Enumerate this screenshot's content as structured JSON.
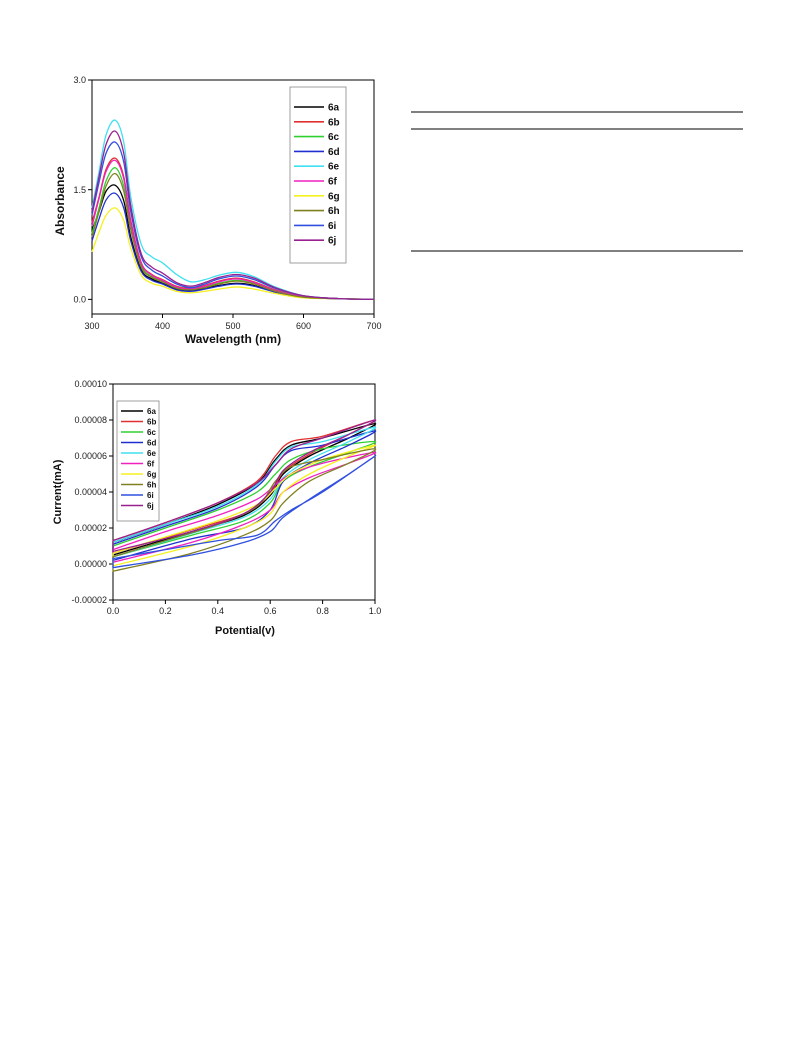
{
  "chart_data": [
    {
      "type": "line",
      "title": "",
      "xlabel": "Wavelength (nm)",
      "ylabel": "Absorbance",
      "xlim": [
        300,
        700
      ],
      "ylim": [
        -0.2,
        3.0
      ],
      "xticks": [
        300,
        400,
        500,
        600,
        700
      ],
      "yticks": [
        0.0,
        1.5,
        3.0
      ],
      "xtick_labels": [
        "300",
        "400",
        "500",
        "600",
        "700"
      ],
      "ytick_labels": [
        "0.0",
        "1.5",
        "3.0"
      ],
      "grid": false,
      "legend_position": "top-right",
      "series": [
        {
          "name": "6a",
          "color": "#000000",
          "x": [
            300,
            310,
            320,
            333,
            345,
            355,
            370,
            385,
            400,
            420,
            440,
            460,
            480,
            505,
            530,
            560,
            600,
            650,
            700
          ],
          "y": [
            0.95,
            1.2,
            1.48,
            1.56,
            1.35,
            0.85,
            0.4,
            0.28,
            0.22,
            0.14,
            0.12,
            0.15,
            0.19,
            0.22,
            0.19,
            0.1,
            0.03,
            0.01,
            0.0
          ]
        },
        {
          "name": "6b",
          "color": "#e03030",
          "x": [
            300,
            310,
            320,
            333,
            345,
            355,
            370,
            385,
            400,
            420,
            440,
            460,
            480,
            505,
            530,
            560,
            600,
            650,
            700
          ],
          "y": [
            1.05,
            1.4,
            1.78,
            1.93,
            1.68,
            1.08,
            0.5,
            0.34,
            0.27,
            0.18,
            0.15,
            0.19,
            0.25,
            0.29,
            0.24,
            0.13,
            0.04,
            0.01,
            0.0
          ]
        },
        {
          "name": "6c",
          "color": "#30d030",
          "x": [
            300,
            310,
            320,
            333,
            345,
            355,
            370,
            385,
            400,
            420,
            440,
            460,
            480,
            505,
            530,
            560,
            600,
            650,
            700
          ],
          "y": [
            0.9,
            1.25,
            1.62,
            1.8,
            1.55,
            1.0,
            0.46,
            0.31,
            0.25,
            0.16,
            0.13,
            0.17,
            0.22,
            0.26,
            0.22,
            0.12,
            0.04,
            0.01,
            0.0
          ]
        },
        {
          "name": "6d",
          "color": "#2030d0",
          "x": [
            300,
            310,
            320,
            333,
            345,
            355,
            370,
            385,
            400,
            420,
            440,
            460,
            480,
            505,
            530,
            560,
            600,
            650,
            700
          ],
          "y": [
            0.8,
            1.1,
            1.36,
            1.45,
            1.25,
            0.8,
            0.38,
            0.26,
            0.21,
            0.13,
            0.11,
            0.14,
            0.18,
            0.21,
            0.18,
            0.1,
            0.03,
            0.01,
            0.0
          ]
        },
        {
          "name": "6e",
          "color": "#40e0f0",
          "x": [
            300,
            310,
            320,
            333,
            345,
            355,
            370,
            385,
            400,
            420,
            440,
            460,
            480,
            505,
            530,
            560,
            600,
            650,
            700
          ],
          "y": [
            1.25,
            1.75,
            2.25,
            2.45,
            2.15,
            1.4,
            0.75,
            0.58,
            0.5,
            0.34,
            0.24,
            0.27,
            0.33,
            0.37,
            0.31,
            0.17,
            0.05,
            0.01,
            0.0
          ]
        },
        {
          "name": "6f",
          "color": "#f020c0",
          "x": [
            300,
            310,
            320,
            333,
            345,
            355,
            370,
            385,
            400,
            420,
            440,
            460,
            480,
            505,
            530,
            560,
            600,
            650,
            700
          ],
          "y": [
            1.0,
            1.38,
            1.75,
            1.9,
            1.65,
            1.05,
            0.49,
            0.33,
            0.26,
            0.17,
            0.14,
            0.18,
            0.24,
            0.28,
            0.23,
            0.12,
            0.04,
            0.01,
            0.0
          ]
        },
        {
          "name": "6g",
          "color": "#f5f020",
          "x": [
            300,
            310,
            320,
            333,
            345,
            355,
            370,
            385,
            400,
            420,
            440,
            460,
            480,
            505,
            530,
            560,
            600,
            650,
            700
          ],
          "y": [
            0.65,
            0.92,
            1.15,
            1.25,
            1.08,
            0.7,
            0.33,
            0.22,
            0.18,
            0.11,
            0.09,
            0.11,
            0.14,
            0.17,
            0.14,
            0.08,
            0.02,
            0.01,
            0.0
          ]
        },
        {
          "name": "6h",
          "color": "#808020",
          "x": [
            300,
            310,
            320,
            333,
            345,
            355,
            370,
            385,
            400,
            420,
            440,
            460,
            480,
            505,
            530,
            560,
            600,
            650,
            700
          ],
          "y": [
            0.85,
            1.2,
            1.55,
            1.72,
            1.48,
            0.95,
            0.44,
            0.3,
            0.24,
            0.15,
            0.13,
            0.16,
            0.21,
            0.25,
            0.21,
            0.11,
            0.03,
            0.01,
            0.0
          ]
        },
        {
          "name": "6i",
          "color": "#3050e0",
          "x": [
            300,
            310,
            320,
            333,
            345,
            355,
            370,
            385,
            400,
            420,
            440,
            460,
            480,
            505,
            530,
            560,
            600,
            650,
            700
          ],
          "y": [
            1.15,
            1.6,
            2.0,
            2.15,
            1.88,
            1.2,
            0.58,
            0.4,
            0.32,
            0.21,
            0.16,
            0.21,
            0.28,
            0.32,
            0.27,
            0.15,
            0.05,
            0.01,
            0.0
          ]
        },
        {
          "name": "6j",
          "color": "#9a2090",
          "x": [
            300,
            310,
            320,
            333,
            345,
            355,
            370,
            385,
            400,
            420,
            440,
            460,
            480,
            505,
            530,
            560,
            600,
            650,
            700
          ],
          "y": [
            1.2,
            1.68,
            2.12,
            2.3,
            2.0,
            1.28,
            0.62,
            0.44,
            0.36,
            0.23,
            0.18,
            0.23,
            0.3,
            0.34,
            0.29,
            0.16,
            0.05,
            0.01,
            0.0
          ]
        }
      ]
    },
    {
      "type": "line",
      "title": "",
      "xlabel": "Potential(v)",
      "ylabel": "Current(mA)",
      "xlim": [
        0.0,
        1.0
      ],
      "ylim": [
        -2e-05,
        0.0001
      ],
      "xticks": [
        0.0,
        0.2,
        0.4,
        0.6,
        0.8,
        1.0
      ],
      "yticks": [
        -2e-05,
        0.0,
        2e-05,
        4e-05,
        6e-05,
        8e-05,
        0.0001
      ],
      "xtick_labels": [
        "0.0",
        "0.2",
        "0.4",
        "0.6",
        "0.8",
        "1.0"
      ],
      "ytick_labels": [
        "-0.00002",
        "0.00000",
        "0.00002",
        "0.00004",
        "0.00006",
        "0.00008",
        "0.00010"
      ],
      "grid": false,
      "legend_position": "top-left",
      "series": [
        {
          "name": "6a",
          "color": "#000000",
          "x": [
            0.0,
            0.2,
            0.4,
            0.55,
            0.62,
            0.68,
            0.8,
            1.0,
            0.9,
            0.75,
            0.65,
            0.6,
            0.5,
            0.3,
            0.0
          ],
          "y": [
            1.2e-05,
            2.2e-05,
            3.3e-05,
            4.5e-05,
            5.8e-05,
            6.6e-05,
            7e-05,
            7.8e-05,
            7e-05,
            6e-05,
            5e-05,
            3.8e-05,
            2.7e-05,
            1.8e-05,
            5e-06
          ]
        },
        {
          "name": "6b",
          "color": "#e03030",
          "x": [
            0.0,
            0.2,
            0.4,
            0.55,
            0.62,
            0.68,
            0.8,
            1.0,
            0.9,
            0.75,
            0.65,
            0.6,
            0.5,
            0.3,
            0.0
          ],
          "y": [
            1.3e-05,
            2.3e-05,
            3.4e-05,
            4.6e-05,
            6e-05,
            6.8e-05,
            7.1e-05,
            8e-05,
            7.2e-05,
            6.1e-05,
            5.1e-05,
            3.9e-05,
            2.8e-05,
            1.9e-05,
            6e-06
          ]
        },
        {
          "name": "6c",
          "color": "#30d030",
          "x": [
            0.0,
            0.2,
            0.4,
            0.55,
            0.62,
            0.68,
            0.8,
            1.0,
            0.9,
            0.75,
            0.65,
            0.6,
            0.5,
            0.3,
            0.0
          ],
          "y": [
            1e-05,
            2e-05,
            3e-05,
            4e-05,
            5e-05,
            5.8e-05,
            6.4e-05,
            6.8e-05,
            6.2e-05,
            5.4e-05,
            4.6e-05,
            3.4e-05,
            2.4e-05,
            1.6e-05,
            4e-06
          ]
        },
        {
          "name": "6d",
          "color": "#2030d0",
          "x": [
            0.0,
            0.2,
            0.4,
            0.55,
            0.62,
            0.68,
            0.8,
            1.0,
            0.9,
            0.75,
            0.65,
            0.6,
            0.5,
            0.3,
            0.0
          ],
          "y": [
            1.1e-05,
            2.1e-05,
            3.1e-05,
            4.3e-05,
            5.5e-05,
            6.3e-05,
            6.6e-05,
            7.4e-05,
            6.6e-05,
            5.6e-05,
            4.6e-05,
            3e-05,
            2e-05,
            1.4e-05,
            2e-06
          ]
        },
        {
          "name": "6e",
          "color": "#40e0f0",
          "x": [
            0.0,
            0.2,
            0.4,
            0.55,
            0.62,
            0.68,
            0.8,
            1.0,
            0.9,
            0.75,
            0.65,
            0.6,
            0.5,
            0.3,
            0.0
          ],
          "y": [
            1.2e-05,
            2.2e-05,
            3.2e-05,
            4.4e-05,
            5.7e-05,
            6.5e-05,
            6.8e-05,
            7.6e-05,
            6.8e-05,
            5.8e-05,
            4.8e-05,
            3.6e-05,
            2.6e-05,
            1.7e-05,
            4e-06
          ]
        },
        {
          "name": "6f",
          "color": "#f020c0",
          "x": [
            0.0,
            0.2,
            0.4,
            0.55,
            0.62,
            0.68,
            0.8,
            1.0,
            0.9,
            0.75,
            0.65,
            0.6,
            0.5,
            0.3,
            0.0
          ],
          "y": [
            8e-06,
            1.8e-05,
            2.7e-05,
            3.6e-05,
            4.4e-05,
            5e-05,
            5.6e-05,
            6.2e-05,
            5.6e-05,
            4.8e-05,
            4e-05,
            3e-05,
            2.2e-05,
            1.2e-05,
            1e-06
          ]
        },
        {
          "name": "6g",
          "color": "#f5f020",
          "x": [
            0.0,
            0.2,
            0.4,
            0.55,
            0.62,
            0.68,
            0.8,
            1.0,
            0.9,
            0.75,
            0.65,
            0.6,
            0.5,
            0.3,
            0.0
          ],
          "y": [
            6e-06,
            1.5e-05,
            2.4e-05,
            3.3e-05,
            4.2e-05,
            5e-05,
            5.8e-05,
            6.6e-05,
            6e-05,
            5e-05,
            4e-05,
            2.8e-05,
            2e-05,
            1e-05,
            -1e-06
          ]
        },
        {
          "name": "6h",
          "color": "#808020",
          "x": [
            0.0,
            0.2,
            0.4,
            0.55,
            0.62,
            0.68,
            0.8,
            1.0,
            0.9,
            0.75,
            0.65,
            0.6,
            0.5,
            0.3,
            0.0
          ],
          "y": [
            4e-06,
            1.3e-05,
            2.2e-05,
            3.2e-05,
            4.6e-05,
            5.4e-05,
            5.8e-05,
            6.4e-05,
            5.6e-05,
            4.6e-05,
            3.4e-05,
            2.4e-05,
            1.6e-05,
            6e-06,
            -4e-06
          ]
        },
        {
          "name": "6i",
          "color": "#3050e0",
          "x": [
            0.0,
            0.2,
            0.4,
            0.55,
            0.62,
            0.68,
            0.8,
            1.0,
            0.9,
            0.75,
            0.65,
            0.6,
            0.5,
            0.3,
            0.0
          ],
          "y": [
            3e-06,
            8e-06,
            1.3e-05,
            1.6e-05,
            2.4e-05,
            3e-05,
            4e-05,
            6e-05,
            5e-05,
            3.6e-05,
            2.6e-05,
            1.8e-05,
            1.2e-05,
            5e-06,
            -2e-06
          ]
        },
        {
          "name": "6j",
          "color": "#9a2090",
          "x": [
            0.0,
            0.2,
            0.4,
            0.55,
            0.62,
            0.68,
            0.8,
            1.0,
            0.9,
            0.75,
            0.65,
            0.6,
            0.5,
            0.3,
            0.0
          ],
          "y": [
            1.3e-05,
            2.3e-05,
            3.4e-05,
            4.5e-05,
            5.5e-05,
            6.4e-05,
            7e-05,
            8e-05,
            7.2e-05,
            6.2e-05,
            5.2e-05,
            4e-05,
            2.8e-05,
            1.8e-05,
            7e-06
          ]
        }
      ]
    }
  ]
}
